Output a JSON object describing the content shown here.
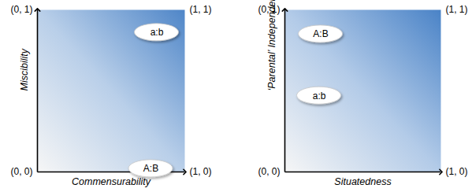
{
  "chart_data": [
    {
      "type": "scatter",
      "x_label": "Commensurability",
      "y_label": "Miscibility",
      "xlim": [
        0,
        1
      ],
      "ylim": [
        0,
        1
      ],
      "tick_labels": false,
      "points": [
        {
          "label": "a:b",
          "x": 0.81,
          "y": 0.86
        },
        {
          "label": "A:B",
          "x": 0.77,
          "y": 0.02
        }
      ],
      "annotations": [
        {
          "text": "(0, 1)",
          "x": 0,
          "y": 1
        },
        {
          "text": "(1, 1)",
          "x": 1,
          "y": 1
        },
        {
          "text": "(0, 0)",
          "x": 0,
          "y": 0
        },
        {
          "text": "(1, 0)",
          "x": 1,
          "y": 0
        }
      ]
    },
    {
      "type": "scatter",
      "x_label": "Situatedness",
      "y_label": "‘Parental’ Independence",
      "xlim": [
        0,
        1
      ],
      "ylim": [
        0,
        1
      ],
      "tick_labels": false,
      "points": [
        {
          "label": "A:B",
          "x": 0.23,
          "y": 0.85
        },
        {
          "label": "a:b",
          "x": 0.22,
          "y": 0.47
        }
      ],
      "annotations": [
        {
          "text": "(0, 1)",
          "x": 0,
          "y": 1
        },
        {
          "text": "(1, 1)",
          "x": 1,
          "y": 1
        },
        {
          "text": "(0, 0)",
          "x": 0,
          "y": 0
        },
        {
          "text": "(1, 0)",
          "x": 1,
          "y": 0
        }
      ]
    }
  ]
}
